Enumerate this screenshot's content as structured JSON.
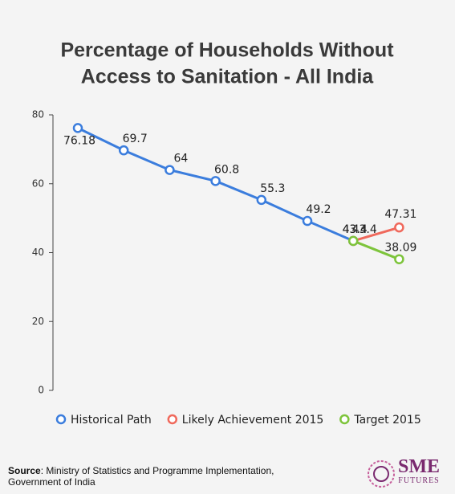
{
  "chart_data": {
    "type": "line",
    "title": [
      "Percentage of Households Without",
      "Access to Sanitation - All India"
    ],
    "categories": [
      null,
      null,
      null,
      null,
      null,
      null,
      null,
      null
    ],
    "series": [
      {
        "name": "Historical Path",
        "color": "#3b7ddd",
        "values": [
          76.18,
          69.7,
          64,
          60.8,
          55.3,
          49.2,
          43.4,
          null
        ]
      },
      {
        "name": "Likely Achievement 2015",
        "color": "#f0695c",
        "values": [
          null,
          null,
          null,
          null,
          null,
          null,
          43.4,
          47.31
        ]
      },
      {
        "name": "Target 2015",
        "color": "#7dc43b",
        "values": [
          null,
          null,
          null,
          null,
          null,
          null,
          43.4,
          38.09
        ]
      }
    ],
    "ylim": [
      0,
      80
    ],
    "yticks": [
      0,
      20,
      40,
      60,
      80
    ],
    "grid": false,
    "legend": "bottom"
  },
  "source": {
    "label": "Source",
    "text": ": Ministry of Statistics and Programme Implementation, Government of India"
  },
  "logo": {
    "line1": "SME",
    "line2": "FUTURES"
  }
}
